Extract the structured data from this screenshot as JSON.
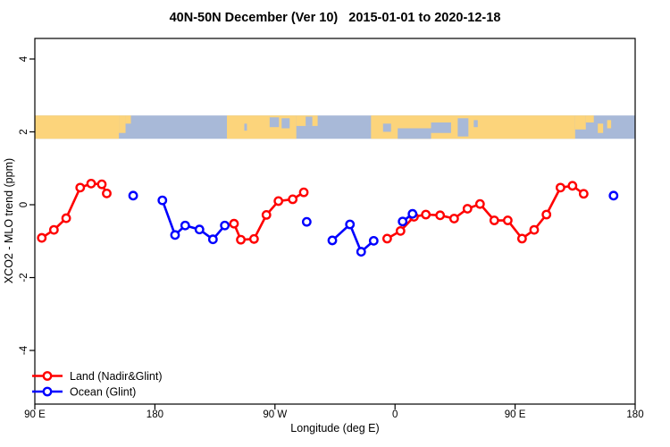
{
  "title": "40N-50N December (Ver 10)   2015-01-01 to 2020-12-18",
  "axes": {
    "xlabel": "Longitude (deg E)",
    "ylabel": "XCO2 - MLO trend (ppm)"
  },
  "legend": {
    "items": [
      {
        "label": "Land (Nadir&Glint)",
        "color": "#ff0000"
      },
      {
        "label": "Ocean (Glint)",
        "color": "#0000ff"
      }
    ]
  },
  "colors": {
    "land_series": "#ff0000",
    "ocean_series": "#0000ff",
    "map_land": "#fcd47b",
    "map_ocean": "#a8b9d8",
    "axis": "#000000"
  },
  "chart_data": {
    "type": "line",
    "title": "40N-50N December (Ver 10)   2015-01-01 to 2020-12-18",
    "xlabel": "Longitude (deg E)",
    "ylabel": "XCO2 - MLO trend (ppm)",
    "x_unit": "degrees east of 90E, axis wraps 90E>180>90W>0>90E>180 (0-450)",
    "xlim": [
      0,
      450
    ],
    "ylim": [
      -5.5,
      4.6
    ],
    "grid": false,
    "x_ticks": [
      {
        "deg": 0,
        "label": "90 E"
      },
      {
        "deg": 90,
        "label": "180"
      },
      {
        "deg": 180,
        "label": "90 W"
      },
      {
        "deg": 270,
        "label": "0"
      },
      {
        "deg": 360,
        "label": "90 E"
      },
      {
        "deg": 450,
        "label": "180"
      }
    ],
    "y_ticks": [
      {
        "value": -4,
        "label": "-4"
      },
      {
        "value": -2,
        "label": "-2"
      },
      {
        "value": 0,
        "label": "0"
      },
      {
        "value": 2,
        "label": "2"
      },
      {
        "value": 4,
        "label": "4"
      }
    ],
    "series": [
      {
        "name": "Land (Nadir&Glint)",
        "color": "#ff0000",
        "marker": "open-circle",
        "segments": [
          [
            [
              5.2,
              -0.91
            ],
            [
              14.3,
              -0.69
            ],
            [
              23.5,
              -0.37
            ],
            [
              34.0,
              0.47
            ],
            [
              42.2,
              0.58
            ],
            [
              50.2,
              0.56
            ],
            [
              53.9,
              0.31
            ]
          ],
          [
            [
              149.3,
              -0.52
            ],
            [
              154.4,
              -0.96
            ],
            [
              164.3,
              -0.94
            ],
            [
              173.6,
              -0.28
            ],
            [
              182.6,
              0.1
            ],
            [
              193.3,
              0.15
            ],
            [
              201.6,
              0.34
            ]
          ],
          [
            [
              264.1,
              -0.93
            ],
            [
              274.1,
              -0.72
            ],
            [
              284.2,
              -0.33
            ],
            [
              293.1,
              -0.27
            ],
            [
              303.8,
              -0.29
            ],
            [
              314.3,
              -0.38
            ],
            [
              324.3,
              -0.11
            ],
            [
              333.7,
              0.02
            ],
            [
              344.4,
              -0.43
            ],
            [
              354.5,
              -0.43
            ],
            [
              365.2,
              -0.93
            ],
            [
              374.3,
              -0.69
            ],
            [
              383.5,
              -0.27
            ],
            [
              394.0,
              0.47
            ],
            [
              403.0,
              0.52
            ],
            [
              411.4,
              0.3
            ]
          ]
        ]
      },
      {
        "name": "Ocean (Glint)",
        "color": "#0000ff",
        "marker": "open-circle",
        "segments": [
          [
            [
              73.7,
              0.25
            ]
          ],
          [
            [
              95.6,
              0.12
            ],
            [
              105.1,
              -0.83
            ],
            [
              112.7,
              -0.57
            ],
            [
              123.4,
              -0.68
            ],
            [
              133.5,
              -0.95
            ],
            [
              142.4,
              -0.57
            ]
          ],
          [
            [
              203.8,
              -0.47
            ]
          ],
          [
            [
              223.0,
              -0.98
            ],
            [
              236.2,
              -0.54
            ],
            [
              244.6,
              -1.29
            ],
            [
              254.0,
              -0.99
            ]
          ],
          [
            [
              275.7,
              -0.46
            ],
            [
              283.1,
              -0.25
            ]
          ],
          [
            [
              433.8,
              0.25
            ]
          ]
        ]
      }
    ],
    "map_band": {
      "description": "40N-50N world coastline strip drawn across the plot near y=2 ppm",
      "y_top_ppm": 2.45,
      "y_bottom_ppm": 1.81,
      "ocean_color": "#a8b9d8",
      "land_color": "#fcd47b",
      "land_rects": [
        [
          0,
          63,
          0,
          1
        ],
        [
          63,
          68,
          0,
          0.75
        ],
        [
          68,
          72,
          0,
          0.35
        ],
        [
          144,
          196,
          0,
          1
        ],
        [
          196,
          212,
          0,
          0.45
        ],
        [
          252,
          405,
          0,
          1
        ],
        [
          405,
          413,
          0,
          0.6
        ],
        [
          413,
          419,
          0,
          0.3
        ],
        [
          422,
          426,
          0.35,
          0.75
        ],
        [
          429,
          432,
          0.2,
          0.55
        ]
      ],
      "water_rects": [
        [
          157,
          159,
          0.35,
          0.65
        ],
        [
          176,
          183,
          0.08,
          0.5
        ],
        [
          185,
          191,
          0.12,
          0.55
        ],
        [
          203,
          208,
          0.05,
          0.45
        ],
        [
          261,
          267,
          0.35,
          0.7
        ],
        [
          272,
          297,
          0.55,
          1
        ],
        [
          297,
          312,
          0.3,
          0.75
        ],
        [
          317,
          325,
          0.12,
          0.9
        ],
        [
          329,
          332,
          0.2,
          0.5
        ]
      ]
    }
  }
}
